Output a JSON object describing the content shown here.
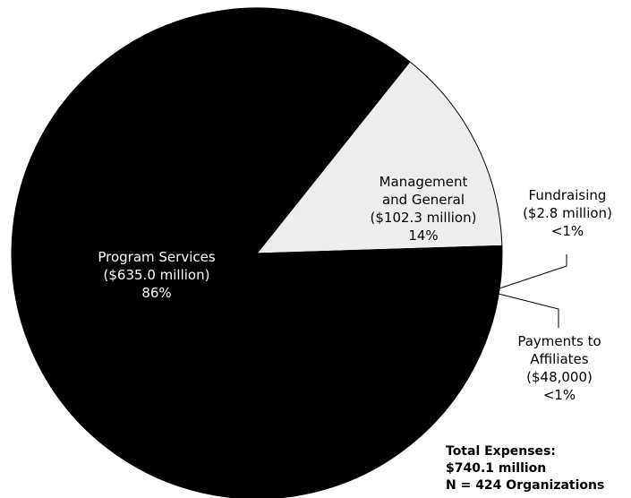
{
  "chart_data": {
    "type": "pie",
    "title": "",
    "slices": [
      {
        "name": "Program Services",
        "value_millions": 635.0,
        "amount_label": "($635.0 million)",
        "percent_label": "86%",
        "color": "#000000"
      },
      {
        "name": "Management and General",
        "value_millions": 102.3,
        "amount_label": "($102.3 million)",
        "percent_label": "14%",
        "color": "#eeeeee"
      },
      {
        "name": "Fundraising",
        "value_millions": 2.8,
        "amount_label": "($2.8 million)",
        "percent_label": "<1%",
        "color": "#000000"
      },
      {
        "name": "Payments to Affiliates",
        "value_millions": 0.048,
        "amount_label": "($48,000)",
        "percent_label": "<1%",
        "color": "#000000"
      }
    ],
    "labels": {
      "program": [
        "Program Services",
        "($635.0 million)",
        "86%"
      ],
      "management": [
        "Management",
        "and General",
        "($102.3 million)",
        "14%"
      ],
      "fundraising": [
        "Fundraising",
        "($2.8 million)",
        "<1%"
      ],
      "affiliates": [
        "Payments to",
        "Affiliates",
        "($48,000)",
        "<1%"
      ]
    }
  },
  "note": {
    "line1": "Total Expenses:",
    "line2": "$740.1 million",
    "line3": "N = 424 Organizations"
  }
}
